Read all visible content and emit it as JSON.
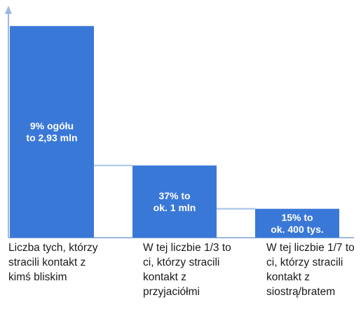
{
  "chart_data": {
    "type": "bar",
    "title": "",
    "xlabel": "",
    "ylabel": "",
    "categories": [
      "Liczba tych, którzy stracili kontakt z kimś bliskim",
      "W tej liczbie 1/3 to ci, którzy stracili kontakt z przyjaciółmi",
      "W tej liczbie 1/7 to ci, którzy stracili kontakt z siostrą/bratem"
    ],
    "values": [
      2.93,
      1.0,
      0.4
    ],
    "data_labels": [
      [
        "9% ogółu",
        "to 2,93 mln"
      ],
      [
        "37% to",
        "ok. 1 mln"
      ],
      [
        "15% to",
        "ok. 400 tys."
      ]
    ],
    "ylim": [
      0,
      3.0
    ],
    "grid": false,
    "colors": {
      "bar": "#3A78D8",
      "label_text": "#ffffff",
      "connector": "#A9C4E6",
      "axis": "#9DB8DE"
    }
  }
}
